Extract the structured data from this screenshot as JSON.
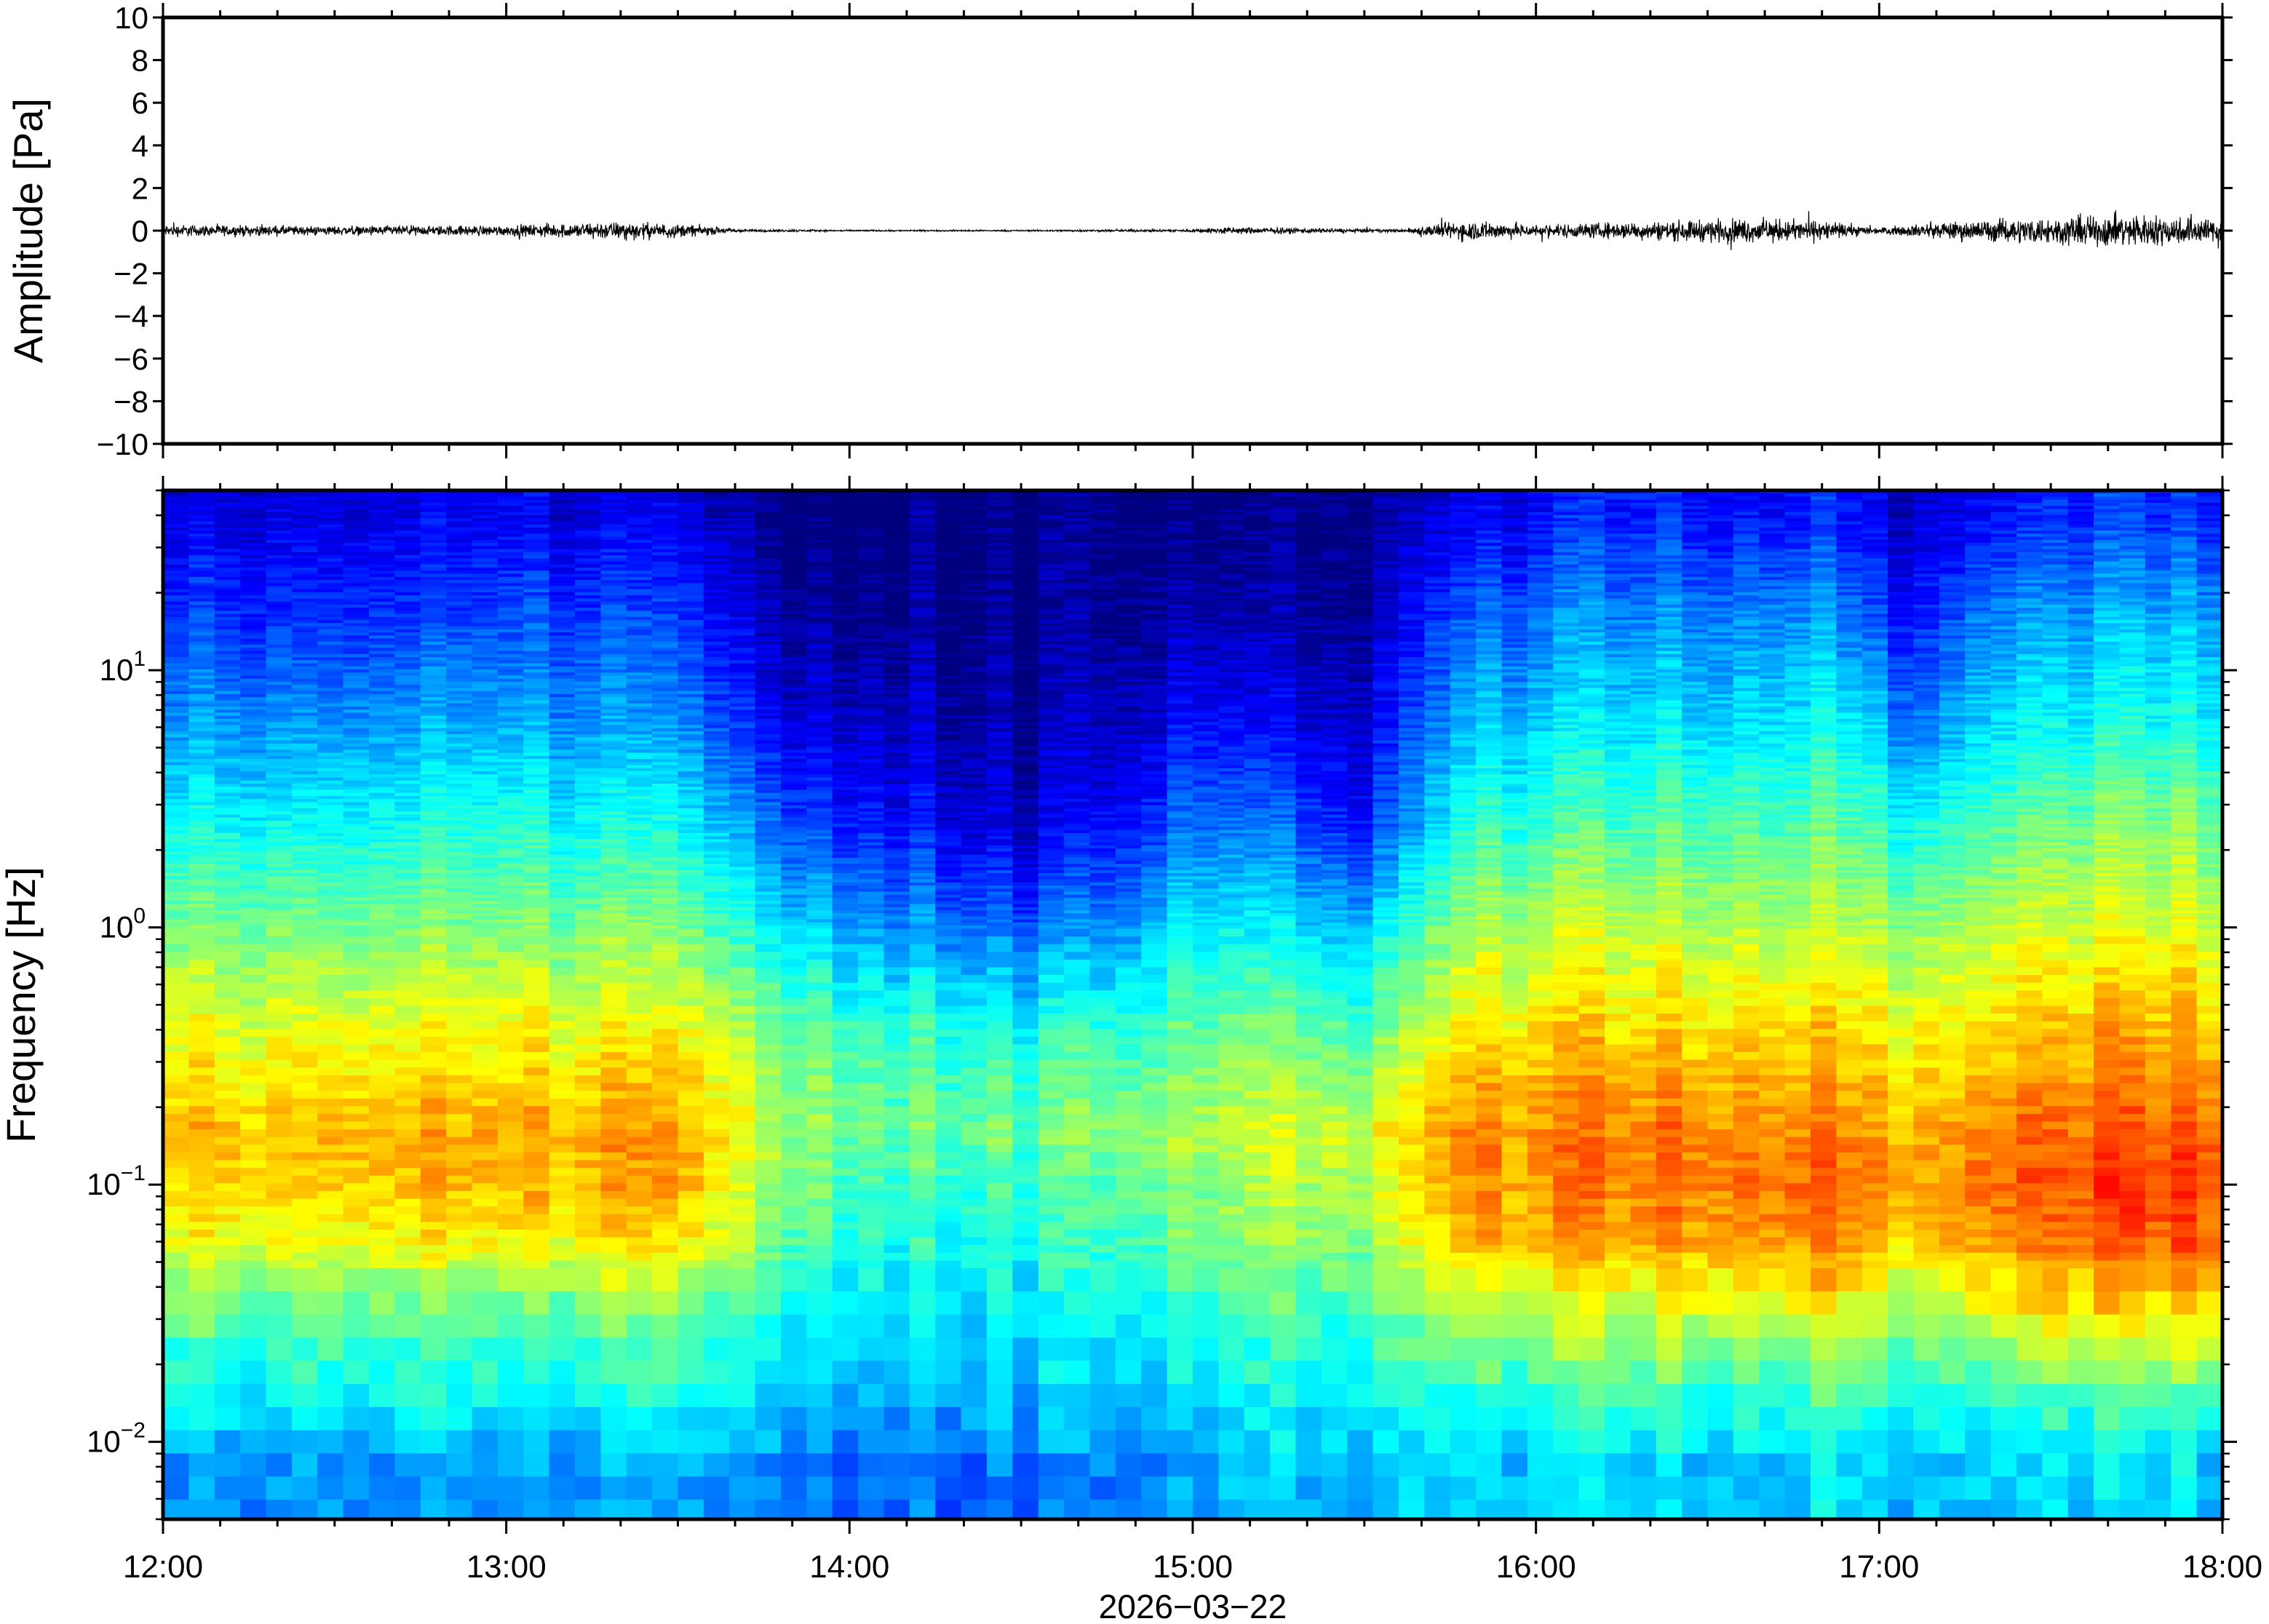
{
  "figure": {
    "xlabel": "2026−03−22",
    "x_tick_labels": [
      "12:00",
      "13:00",
      "14:00",
      "15:00",
      "16:00",
      "17:00",
      "18:00"
    ]
  },
  "chart_data": [
    {
      "type": "line",
      "ylabel": "Amplitude [Pa]",
      "ylim": [
        -10,
        10
      ],
      "y_ticks": [
        10,
        8,
        6,
        4,
        2,
        0,
        -2,
        -4,
        -6,
        -8,
        -10
      ],
      "y_tick_labels": [
        "10",
        "8",
        "6",
        "4",
        "2",
        "0",
        "−2",
        "−4",
        "−6",
        "−8",
        "−10"
      ],
      "x_range": [
        "12:00",
        "18:00"
      ],
      "grid": false,
      "series": [
        {
          "color": "#000000",
          "envelope_x_hours": [
            12.0,
            12.5,
            13.0,
            13.3,
            13.5,
            13.7,
            14.0,
            14.5,
            15.0,
            15.1,
            15.4,
            15.6,
            15.8,
            16.0,
            16.3,
            16.6,
            16.8,
            17.0,
            17.2,
            17.5,
            17.7,
            18.0
          ],
          "envelope_amplitude_pa": [
            0.4,
            0.3,
            0.35,
            0.6,
            0.45,
            0.1,
            0.05,
            0.05,
            0.1,
            0.25,
            0.15,
            0.1,
            0.7,
            0.4,
            0.6,
            0.8,
            0.7,
            0.2,
            0.6,
            0.9,
            1.1,
            0.8
          ]
        }
      ]
    },
    {
      "type": "heatmap",
      "ylabel": "Frequency [Hz]",
      "y_scale": "log",
      "ylim": [
        0.005,
        50
      ],
      "y_ticks": [
        10,
        1,
        0.1,
        0.01
      ],
      "y_tick_labels": [
        {
          "base": "10",
          "exp": "1"
        },
        {
          "base": "10",
          "exp": "0"
        },
        {
          "base": "10",
          "exp": "−1"
        },
        {
          "base": "10",
          "exp": "−2"
        }
      ],
      "x_range": [
        "12:00",
        "18:00"
      ],
      "colormap": [
        "#00007f",
        "#0000ff",
        "#007fff",
        "#00ffff",
        "#7fff7f",
        "#ffff00",
        "#ff7f00",
        "#ff0000"
      ],
      "rows_log10_freq": [
        1.6,
        1.2,
        0.8,
        0.4,
        0.0,
        -0.4,
        -0.8,
        -1.0,
        -1.2,
        -1.5,
        -1.8,
        -2.1
      ],
      "cols_hours": [
        12.0,
        12.5,
        13.0,
        13.5,
        13.8,
        14.0,
        14.2,
        14.5,
        14.8,
        15.0,
        15.25,
        15.5,
        15.8,
        16.0,
        16.3,
        16.6,
        16.8,
        17.0,
        17.1,
        17.3,
        17.5,
        17.8,
        18.0
      ],
      "relative_power_grid": [
        [
          0.12,
          0.1,
          0.12,
          0.1,
          0.0,
          0.0,
          0.0,
          0.0,
          0.0,
          0.02,
          0.0,
          0.0,
          0.12,
          0.15,
          0.18,
          0.18,
          0.2,
          0.1,
          0.08,
          0.15,
          0.18,
          0.2,
          0.2
        ],
        [
          0.22,
          0.18,
          0.22,
          0.2,
          0.05,
          0.04,
          0.02,
          0.0,
          0.02,
          0.08,
          0.04,
          0.02,
          0.25,
          0.28,
          0.3,
          0.32,
          0.35,
          0.2,
          0.15,
          0.3,
          0.32,
          0.35,
          0.35
        ],
        [
          0.32,
          0.3,
          0.33,
          0.3,
          0.12,
          0.1,
          0.06,
          0.03,
          0.06,
          0.18,
          0.12,
          0.08,
          0.35,
          0.38,
          0.4,
          0.42,
          0.45,
          0.35,
          0.25,
          0.4,
          0.42,
          0.45,
          0.45
        ],
        [
          0.45,
          0.42,
          0.45,
          0.43,
          0.25,
          0.2,
          0.15,
          0.08,
          0.15,
          0.3,
          0.25,
          0.15,
          0.48,
          0.5,
          0.52,
          0.55,
          0.55,
          0.48,
          0.42,
          0.52,
          0.55,
          0.58,
          0.58
        ],
        [
          0.58,
          0.55,
          0.57,
          0.56,
          0.4,
          0.35,
          0.3,
          0.25,
          0.3,
          0.45,
          0.4,
          0.35,
          0.62,
          0.64,
          0.64,
          0.66,
          0.66,
          0.6,
          0.58,
          0.65,
          0.66,
          0.68,
          0.68
        ],
        [
          0.7,
          0.68,
          0.7,
          0.7,
          0.58,
          0.52,
          0.48,
          0.45,
          0.48,
          0.56,
          0.55,
          0.5,
          0.74,
          0.75,
          0.75,
          0.78,
          0.78,
          0.72,
          0.7,
          0.76,
          0.78,
          0.8,
          0.8
        ],
        [
          0.8,
          0.78,
          0.8,
          0.82,
          0.62,
          0.58,
          0.55,
          0.55,
          0.58,
          0.65,
          0.66,
          0.66,
          0.85,
          0.84,
          0.86,
          0.88,
          0.88,
          0.8,
          0.78,
          0.86,
          0.88,
          0.9,
          0.92
        ],
        [
          0.78,
          0.76,
          0.78,
          0.8,
          0.58,
          0.52,
          0.5,
          0.48,
          0.52,
          0.6,
          0.62,
          0.62,
          0.84,
          0.84,
          0.86,
          0.9,
          0.92,
          0.82,
          0.8,
          0.88,
          0.9,
          0.94,
          0.95
        ],
        [
          0.72,
          0.7,
          0.72,
          0.74,
          0.55,
          0.5,
          0.46,
          0.45,
          0.5,
          0.58,
          0.6,
          0.58,
          0.8,
          0.8,
          0.82,
          0.86,
          0.88,
          0.78,
          0.76,
          0.84,
          0.86,
          0.9,
          0.92
        ],
        [
          0.55,
          0.52,
          0.54,
          0.56,
          0.45,
          0.42,
          0.4,
          0.4,
          0.42,
          0.48,
          0.5,
          0.48,
          0.62,
          0.64,
          0.66,
          0.7,
          0.72,
          0.62,
          0.6,
          0.68,
          0.72,
          0.75,
          0.76
        ],
        [
          0.45,
          0.44,
          0.44,
          0.45,
          0.4,
          0.38,
          0.36,
          0.36,
          0.38,
          0.42,
          0.44,
          0.42,
          0.48,
          0.5,
          0.5,
          0.52,
          0.52,
          0.48,
          0.46,
          0.5,
          0.52,
          0.52,
          0.52
        ],
        [
          0.32,
          0.3,
          0.3,
          0.32,
          0.3,
          0.28,
          0.26,
          0.26,
          0.28,
          0.35,
          0.36,
          0.34,
          0.38,
          0.38,
          0.38,
          0.4,
          0.4,
          0.36,
          0.34,
          0.38,
          0.38,
          0.4,
          0.4
        ]
      ]
    }
  ]
}
